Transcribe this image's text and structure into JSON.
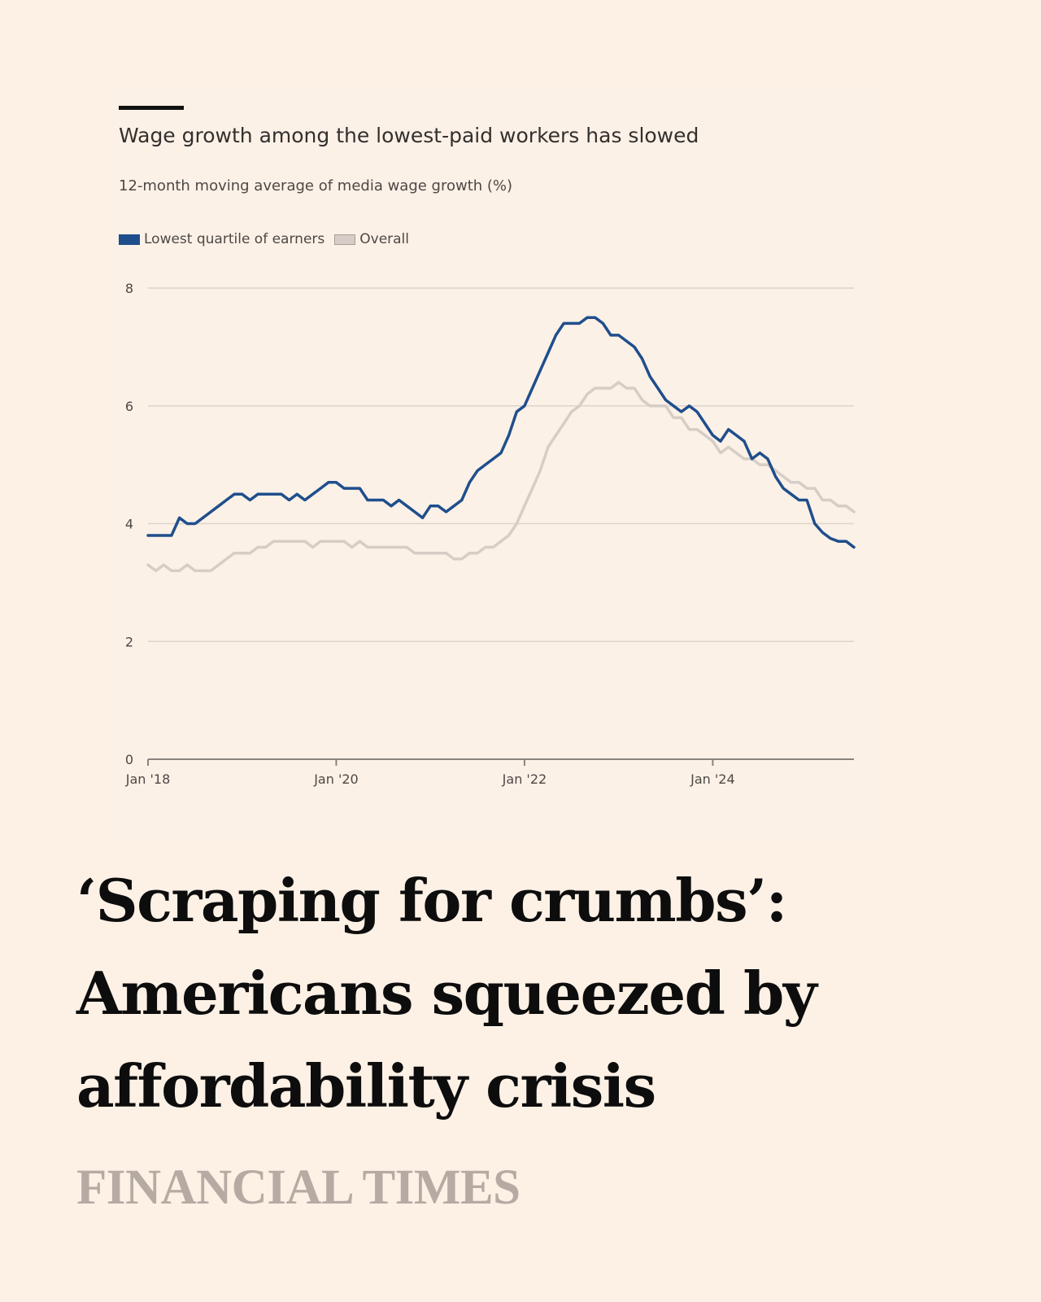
{
  "chart_data": {
    "type": "line",
    "title": "Wage growth among the lowest-paid workers has slowed",
    "subtitle": "12-month moving average of media wage growth (%)",
    "x_ticks": [
      "Jan '18",
      "Jan '20",
      "Jan '22",
      "Jan '24"
    ],
    "x_range": [
      "2018-01",
      "2025-07"
    ],
    "ylim": [
      0,
      8
    ],
    "y_ticks": [
      0,
      2,
      4,
      6,
      8
    ],
    "grid": true,
    "legend_position": "top-left",
    "series": [
      {
        "name": "Lowest quartile of earners",
        "color": "#1f4e8c",
        "points": [
          [
            "2018-01",
            3.8
          ],
          [
            "2018-02",
            3.8
          ],
          [
            "2018-03",
            3.8
          ],
          [
            "2018-04",
            3.8
          ],
          [
            "2018-05",
            4.1
          ],
          [
            "2018-06",
            4.0
          ],
          [
            "2018-07",
            4.0
          ],
          [
            "2018-08",
            4.1
          ],
          [
            "2018-09",
            4.2
          ],
          [
            "2018-10",
            4.3
          ],
          [
            "2018-11",
            4.4
          ],
          [
            "2018-12",
            4.5
          ],
          [
            "2019-01",
            4.5
          ],
          [
            "2019-02",
            4.4
          ],
          [
            "2019-03",
            4.5
          ],
          [
            "2019-04",
            4.5
          ],
          [
            "2019-05",
            4.5
          ],
          [
            "2019-06",
            4.5
          ],
          [
            "2019-07",
            4.4
          ],
          [
            "2019-08",
            4.5
          ],
          [
            "2019-09",
            4.4
          ],
          [
            "2019-10",
            4.5
          ],
          [
            "2019-11",
            4.6
          ],
          [
            "2019-12",
            4.7
          ],
          [
            "2020-01",
            4.7
          ],
          [
            "2020-02",
            4.6
          ],
          [
            "2020-03",
            4.6
          ],
          [
            "2020-04",
            4.6
          ],
          [
            "2020-05",
            4.4
          ],
          [
            "2020-06",
            4.4
          ],
          [
            "2020-07",
            4.4
          ],
          [
            "2020-08",
            4.3
          ],
          [
            "2020-09",
            4.4
          ],
          [
            "2020-10",
            4.3
          ],
          [
            "2020-11",
            4.2
          ],
          [
            "2020-12",
            4.1
          ],
          [
            "2021-01",
            4.3
          ],
          [
            "2021-02",
            4.3
          ],
          [
            "2021-03",
            4.2
          ],
          [
            "2021-04",
            4.3
          ],
          [
            "2021-05",
            4.4
          ],
          [
            "2021-06",
            4.7
          ],
          [
            "2021-07",
            4.9
          ],
          [
            "2021-08",
            5.0
          ],
          [
            "2021-09",
            5.1
          ],
          [
            "2021-10",
            5.2
          ],
          [
            "2021-11",
            5.5
          ],
          [
            "2021-12",
            5.9
          ],
          [
            "2022-01",
            6.0
          ],
          [
            "2022-02",
            6.3
          ],
          [
            "2022-03",
            6.6
          ],
          [
            "2022-04",
            6.9
          ],
          [
            "2022-05",
            7.2
          ],
          [
            "2022-06",
            7.4
          ],
          [
            "2022-07",
            7.4
          ],
          [
            "2022-08",
            7.4
          ],
          [
            "2022-09",
            7.5
          ],
          [
            "2022-10",
            7.5
          ],
          [
            "2022-11",
            7.4
          ],
          [
            "2022-12",
            7.2
          ],
          [
            "2023-01",
            7.2
          ],
          [
            "2023-02",
            7.1
          ],
          [
            "2023-03",
            7.0
          ],
          [
            "2023-04",
            6.8
          ],
          [
            "2023-05",
            6.5
          ],
          [
            "2023-06",
            6.3
          ],
          [
            "2023-07",
            6.1
          ],
          [
            "2023-08",
            6.0
          ],
          [
            "2023-09",
            5.9
          ],
          [
            "2023-10",
            6.0
          ],
          [
            "2023-11",
            5.9
          ],
          [
            "2023-12",
            5.7
          ],
          [
            "2024-01",
            5.5
          ],
          [
            "2024-02",
            5.4
          ],
          [
            "2024-03",
            5.6
          ],
          [
            "2024-04",
            5.5
          ],
          [
            "2024-05",
            5.4
          ],
          [
            "2024-06",
            5.1
          ],
          [
            "2024-07",
            5.2
          ],
          [
            "2024-08",
            5.1
          ],
          [
            "2024-09",
            4.8
          ],
          [
            "2024-10",
            4.6
          ],
          [
            "2024-11",
            4.5
          ],
          [
            "2024-12",
            4.4
          ],
          [
            "2025-01",
            4.4
          ],
          [
            "2025-02",
            4.0
          ],
          [
            "2025-03",
            3.85
          ],
          [
            "2025-04",
            3.75
          ],
          [
            "2025-05",
            3.7
          ],
          [
            "2025-06",
            3.7
          ],
          [
            "2025-07",
            3.6
          ]
        ]
      },
      {
        "name": "Overall",
        "color": "#d6cec6",
        "points": [
          [
            "2018-01",
            3.3
          ],
          [
            "2018-02",
            3.2
          ],
          [
            "2018-03",
            3.3
          ],
          [
            "2018-04",
            3.2
          ],
          [
            "2018-05",
            3.2
          ],
          [
            "2018-06",
            3.3
          ],
          [
            "2018-07",
            3.2
          ],
          [
            "2018-08",
            3.2
          ],
          [
            "2018-09",
            3.2
          ],
          [
            "2018-10",
            3.3
          ],
          [
            "2018-11",
            3.4
          ],
          [
            "2018-12",
            3.5
          ],
          [
            "2019-01",
            3.5
          ],
          [
            "2019-02",
            3.5
          ],
          [
            "2019-03",
            3.6
          ],
          [
            "2019-04",
            3.6
          ],
          [
            "2019-05",
            3.7
          ],
          [
            "2019-06",
            3.7
          ],
          [
            "2019-07",
            3.7
          ],
          [
            "2019-08",
            3.7
          ],
          [
            "2019-09",
            3.7
          ],
          [
            "2019-10",
            3.6
          ],
          [
            "2019-11",
            3.7
          ],
          [
            "2019-12",
            3.7
          ],
          [
            "2020-01",
            3.7
          ],
          [
            "2020-02",
            3.7
          ],
          [
            "2020-03",
            3.6
          ],
          [
            "2020-04",
            3.7
          ],
          [
            "2020-05",
            3.6
          ],
          [
            "2020-06",
            3.6
          ],
          [
            "2020-07",
            3.6
          ],
          [
            "2020-08",
            3.6
          ],
          [
            "2020-09",
            3.6
          ],
          [
            "2020-10",
            3.6
          ],
          [
            "2020-11",
            3.5
          ],
          [
            "2020-12",
            3.5
          ],
          [
            "2021-01",
            3.5
          ],
          [
            "2021-02",
            3.5
          ],
          [
            "2021-03",
            3.5
          ],
          [
            "2021-04",
            3.4
          ],
          [
            "2021-05",
            3.4
          ],
          [
            "2021-06",
            3.5
          ],
          [
            "2021-07",
            3.5
          ],
          [
            "2021-08",
            3.6
          ],
          [
            "2021-09",
            3.6
          ],
          [
            "2021-10",
            3.7
          ],
          [
            "2021-11",
            3.8
          ],
          [
            "2021-12",
            4.0
          ],
          [
            "2022-01",
            4.3
          ],
          [
            "2022-02",
            4.6
          ],
          [
            "2022-03",
            4.9
          ],
          [
            "2022-04",
            5.3
          ],
          [
            "2022-05",
            5.5
          ],
          [
            "2022-06",
            5.7
          ],
          [
            "2022-07",
            5.9
          ],
          [
            "2022-08",
            6.0
          ],
          [
            "2022-09",
            6.2
          ],
          [
            "2022-10",
            6.3
          ],
          [
            "2022-11",
            6.3
          ],
          [
            "2022-12",
            6.3
          ],
          [
            "2023-01",
            6.4
          ],
          [
            "2023-02",
            6.3
          ],
          [
            "2023-03",
            6.3
          ],
          [
            "2023-04",
            6.1
          ],
          [
            "2023-05",
            6.0
          ],
          [
            "2023-06",
            6.0
          ],
          [
            "2023-07",
            6.0
          ],
          [
            "2023-08",
            5.8
          ],
          [
            "2023-09",
            5.8
          ],
          [
            "2023-10",
            5.6
          ],
          [
            "2023-11",
            5.6
          ],
          [
            "2023-12",
            5.5
          ],
          [
            "2024-01",
            5.4
          ],
          [
            "2024-02",
            5.2
          ],
          [
            "2024-03",
            5.3
          ],
          [
            "2024-04",
            5.2
          ],
          [
            "2024-05",
            5.1
          ],
          [
            "2024-06",
            5.1
          ],
          [
            "2024-07",
            5.0
          ],
          [
            "2024-08",
            5.0
          ],
          [
            "2024-09",
            4.9
          ],
          [
            "2024-10",
            4.8
          ],
          [
            "2024-11",
            4.7
          ],
          [
            "2024-12",
            4.7
          ],
          [
            "2025-01",
            4.6
          ],
          [
            "2025-02",
            4.6
          ],
          [
            "2025-03",
            4.4
          ],
          [
            "2025-04",
            4.4
          ],
          [
            "2025-05",
            4.3
          ],
          [
            "2025-06",
            4.3
          ],
          [
            "2025-07",
            4.2
          ]
        ]
      }
    ]
  },
  "headline_lines": [
    "‘Scraping for crumbs’:",
    "Americans squeezed by",
    "affordability crisis"
  ],
  "brand": "FINANCIAL TIMES"
}
